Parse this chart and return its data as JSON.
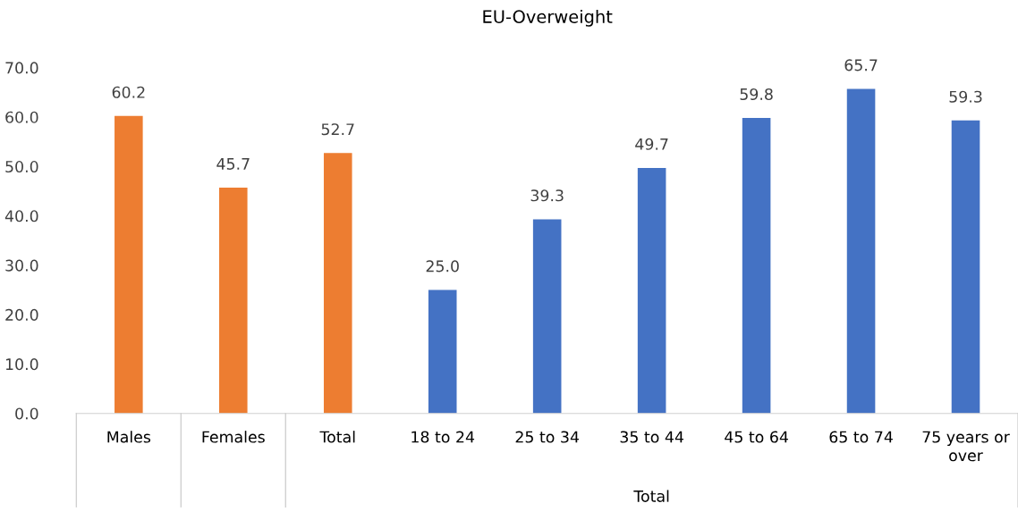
{
  "chart_data": {
    "type": "bar",
    "title": "EU-Overweight",
    "categories": [
      "Males",
      "Females",
      "Total",
      "18 to 24",
      "25 to 34",
      "35 to 44",
      "45 to 64",
      "65 to 74",
      "75 years or\nover"
    ],
    "values": [
      60.2,
      45.7,
      52.7,
      25.0,
      39.3,
      49.7,
      59.8,
      65.7,
      59.3
    ],
    "colors": [
      "#ed7d31",
      "#ed7d31",
      "#ed7d31",
      "#4472c4",
      "#4472c4",
      "#4472c4",
      "#4472c4",
      "#4472c4",
      "#4472c4"
    ],
    "value_labels": [
      "60.2",
      "45.7",
      "52.7",
      "25.0",
      "39.3",
      "49.7",
      "59.8",
      "65.7",
      "59.3"
    ],
    "ylim": [
      0,
      70
    ],
    "yticks": [
      {
        "value": 0,
        "label": "0.0"
      },
      {
        "value": 10,
        "label": "10.0"
      },
      {
        "value": 20,
        "label": "20.0"
      },
      {
        "value": 30,
        "label": "30.0"
      },
      {
        "value": 40,
        "label": "40.0"
      },
      {
        "value": 50,
        "label": "50.0"
      },
      {
        "value": 60,
        "label": "60.0"
      },
      {
        "value": 70,
        "label": "70.0"
      }
    ],
    "annotations": [
      "Total"
    ],
    "grid": false,
    "legend": false
  }
}
